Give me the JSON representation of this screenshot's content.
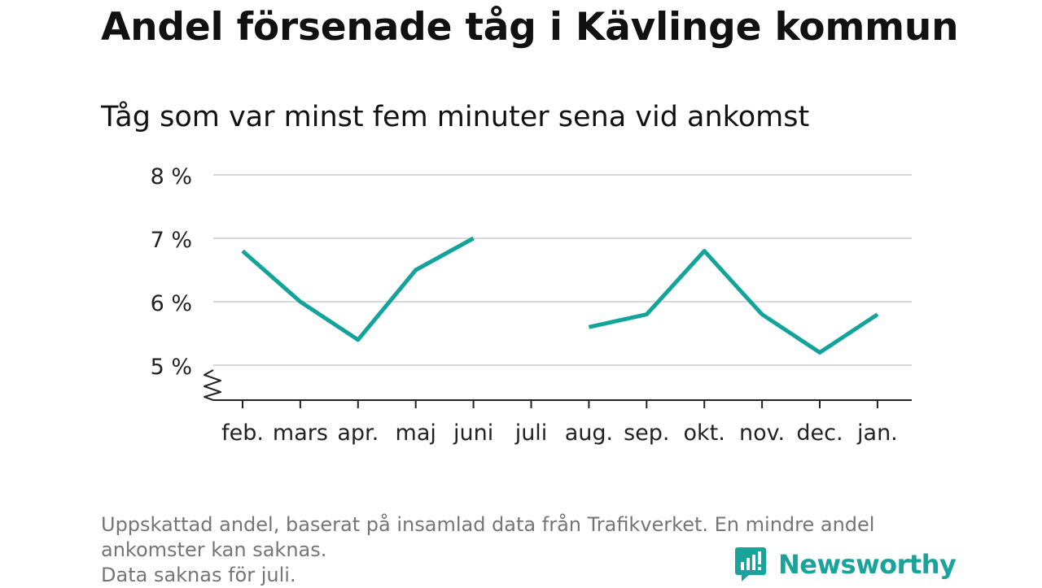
{
  "chart_data": {
    "type": "line",
    "title": "Andel försenade tåg i Kävlinge kommun",
    "subtitle": "Tåg som var minst fem minuter sena vid ankomst",
    "categories": [
      "feb.",
      "mars",
      "apr.",
      "maj",
      "juni",
      "juli",
      "aug.",
      "sep.",
      "okt.",
      "nov.",
      "dec.",
      "jan."
    ],
    "series": [
      {
        "values": [
          6.8,
          6.0,
          5.4,
          6.5,
          7.0,
          null,
          5.6,
          5.8,
          6.8,
          5.8,
          5.2,
          5.8
        ]
      }
    ],
    "y_ticks": [
      {
        "value": 5,
        "label": "5 %"
      },
      {
        "value": 6,
        "label": "6 %"
      },
      {
        "value": 7,
        "label": "7 %"
      },
      {
        "value": 8,
        "label": "8 %"
      }
    ],
    "ylim": [
      4.45,
      8
    ],
    "y_axis_break": true,
    "grid": true,
    "line_color": "#12a39a",
    "notes": [
      "Uppskattad andel, baserat på insamlad data från Trafikverket. En mindre andel",
      "ankomster kan saknas.",
      "Data saknas för juli."
    ]
  },
  "brand": {
    "name": "Newsworthy",
    "icon": "newsworthy-logo-icon",
    "color": "#1aa39a"
  }
}
